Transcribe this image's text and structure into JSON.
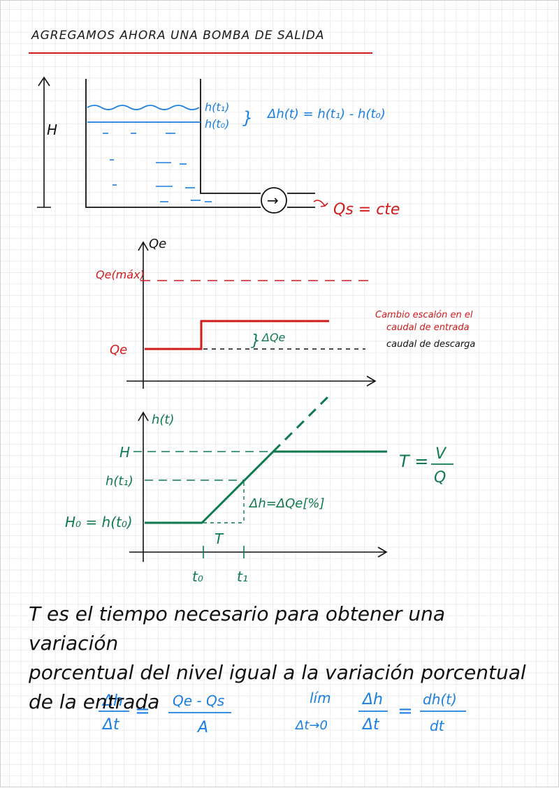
{
  "title": "Agregamos ahora una bomba de salida",
  "colors": {
    "red": "#d11a1a",
    "blue": "#1a7fe0",
    "green": "#0e7a4e",
    "black": "#111111"
  },
  "tank": {
    "height_label": "H",
    "level_t1": "h(t₁)",
    "level_t0": "h(t₀)",
    "brace": "}",
    "delta_eq": "Δh(t) = h(t₁) - h(t₀)",
    "pump_symbol": "→",
    "outflow": "Qs = cte"
  },
  "graph_q": {
    "y_label": "Qe",
    "max_label": "Qe(máx)",
    "qe_label": "Qe",
    "delta_label": "ΔQe",
    "note_line1": "Cambio escalón en el",
    "note_line2": "caudal de entrada",
    "note_line3": "caudal de descarga"
  },
  "graph_h": {
    "y_label": "h(t)",
    "H_label": "H",
    "ht1_label": "h(t₁)",
    "h0_label": "H₀ = h(t₀)",
    "delta_label": "Δh=ΔQe[%]",
    "T_label": "T",
    "t0_label": "t₀",
    "t1_label": "t₁",
    "T_eq_lhs": "T =",
    "T_eq_num": "V",
    "T_eq_den": "Q"
  },
  "paragraph": {
    "line1": "T es el tiempo necesario para obtener una variación",
    "line2": "porcentual del nivel igual a la variación porcentual",
    "line3": "de la entrada"
  },
  "formulas": {
    "f1_num": "Δh",
    "f1_den": "Δt",
    "eq": "=",
    "f1_rhs_num": "Qe - Qs",
    "f1_rhs_den": "A",
    "lim": "lím",
    "lim_sub": "Δt→0",
    "f2_num": "Δh",
    "f2_den": "Δt",
    "eq2": "=",
    "f2_rhs_num": "dh(t)",
    "f2_rhs_den": "dt"
  }
}
